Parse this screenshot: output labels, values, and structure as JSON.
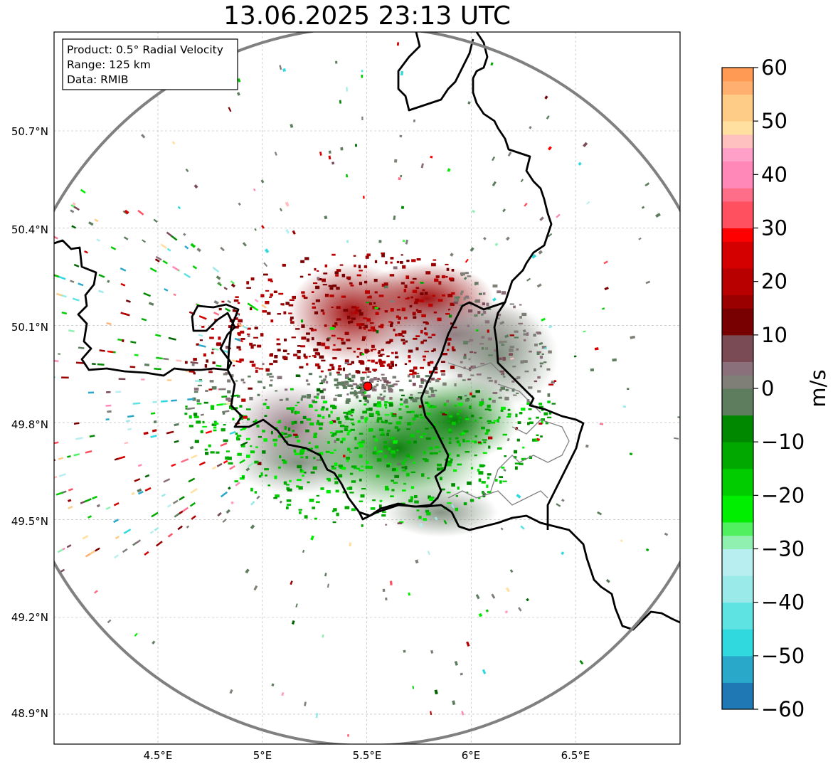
{
  "title": "13.06.2025 23:13 UTC",
  "info_box": {
    "lines": [
      "Product: 0.5° Radial Velocity",
      "Range: 125 km",
      "Data: RMIB"
    ]
  },
  "map": {
    "lon_range": [
      4.0,
      7.0
    ],
    "lat_range": [
      48.8,
      51.0
    ],
    "lon_ticks": [
      "4.5°E",
      "5°E",
      "5.5°E",
      "6°E",
      "6.5°E"
    ],
    "lat_ticks": [
      "50.7°N",
      "50.4°N",
      "50.1°N",
      "49.8°N",
      "49.5°N",
      "49.2°N",
      "48.9°N"
    ],
    "grid": true,
    "radar_site": {
      "lon": 5.505,
      "lat": 49.914
    },
    "range_ring_km": 125,
    "colors": {
      "border": "#000000",
      "range_ring": "#808080",
      "admin_lines": "#808080",
      "radar_marker": "#ff0000"
    }
  },
  "colorbar": {
    "label": "m/s",
    "ticks": [
      "60",
      "50",
      "40",
      "30",
      "20",
      "10",
      "0",
      "−10",
      "−20",
      "−30",
      "−40",
      "−50",
      "−60"
    ],
    "min": -60,
    "max": 60
  }
}
